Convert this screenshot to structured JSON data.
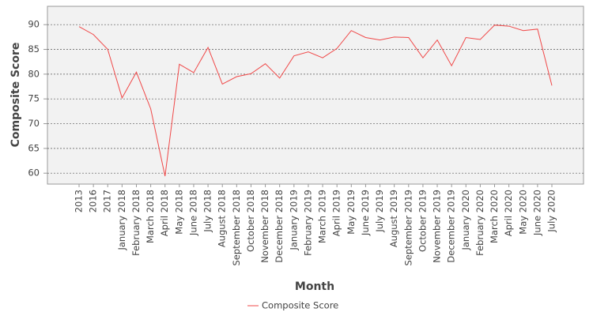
{
  "chart_data": {
    "type": "line",
    "x_label": "Month",
    "y_label": "Composite Score",
    "categories": [
      "2013",
      "2016",
      "2017",
      "January 2018",
      "February 2018",
      "March 2018",
      "April 2018",
      "May 2018",
      "June 2018",
      "July 2018",
      "August 2018",
      "September 2018",
      "October 2018",
      "November 2018",
      "December 2018",
      "January 2019",
      "February 2019",
      "March 2019",
      "April 2019",
      "May 2019",
      "June 2019",
      "July 2019",
      "August 2019",
      "September 2019",
      "October 2019",
      "November 2019",
      "December 2019",
      "January 2020",
      "February 2020",
      "March 2020",
      "April 2020",
      "May 2020",
      "June 2020",
      "July 2020"
    ],
    "series": [
      {
        "name": "Composite Score",
        "color": "#f04848",
        "values": [
          89.6,
          88.0,
          85.0,
          75.2,
          80.4,
          73.0,
          59.4,
          82.0,
          80.3,
          85.4,
          78.0,
          79.5,
          80.1,
          82.1,
          79.2,
          83.7,
          84.5,
          83.3,
          85.2,
          88.8,
          87.4,
          86.9,
          87.5,
          87.4,
          83.3,
          86.9,
          81.7,
          87.4,
          87.0,
          89.9,
          89.7,
          88.8,
          89.1,
          77.7
        ]
      }
    ],
    "ylim": [
      57.8,
      93.7
    ],
    "yticks": [
      60,
      65,
      70,
      75,
      80,
      85,
      90
    ],
    "grid": true,
    "legend": "bottom"
  }
}
